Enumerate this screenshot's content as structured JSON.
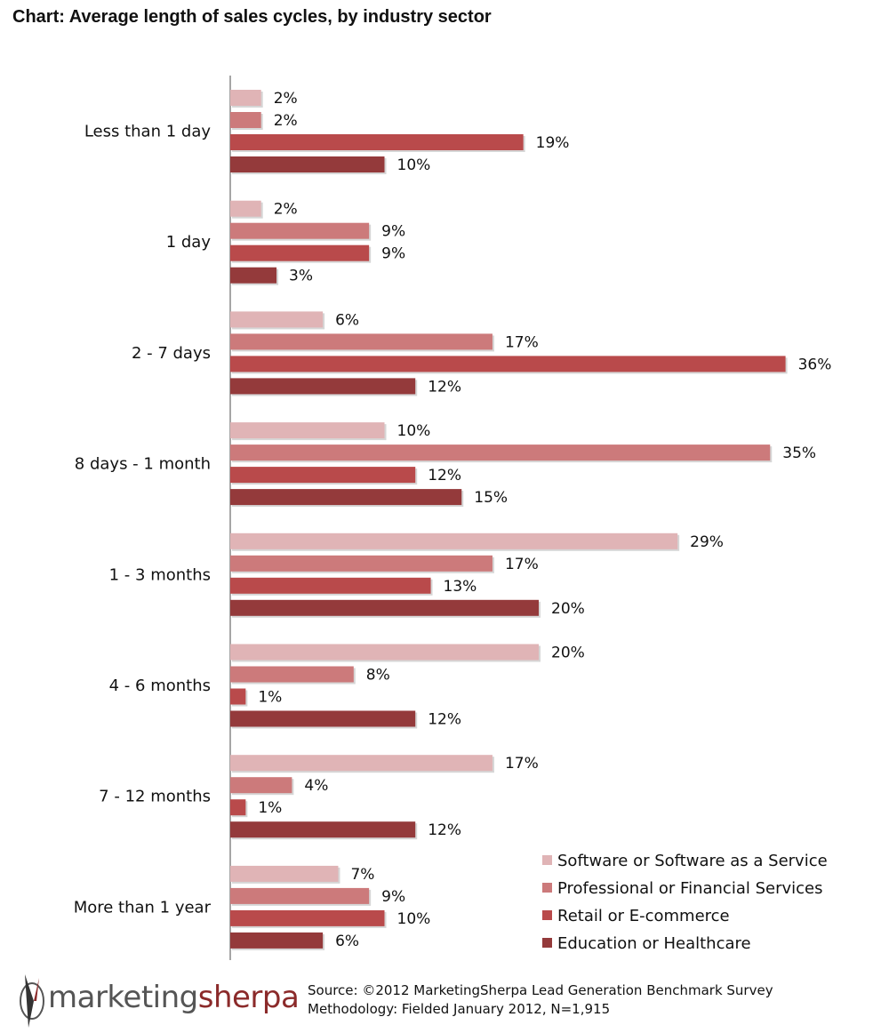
{
  "title": "Chart: Average length of sales cycles, by industry sector",
  "chart_data": {
    "type": "bar",
    "orientation": "horizontal",
    "title": "Chart: Average length of sales cycles, by industry sector",
    "categories": [
      "Less than 1 day",
      "1 day",
      "2 - 7 days",
      "8 days - 1 month",
      "1 - 3 months",
      "4 - 6 months",
      "7 - 12 months",
      "More than 1 year"
    ],
    "series": [
      {
        "name": "Software or Software as a Service",
        "color": "#e0b4b6",
        "values": [
          2,
          2,
          6,
          10,
          29,
          20,
          17,
          7
        ]
      },
      {
        "name": "Professional or Financial Services",
        "color": "#cc7a7b",
        "values": [
          2,
          9,
          17,
          35,
          17,
          8,
          4,
          9
        ]
      },
      {
        "name": "Retail or E-commerce",
        "color": "#b94a4b",
        "values": [
          19,
          9,
          36,
          12,
          13,
          1,
          1,
          10
        ]
      },
      {
        "name": "Education or Healthcare",
        "color": "#943a3b",
        "values": [
          10,
          3,
          12,
          15,
          20,
          12,
          12,
          6
        ]
      }
    ],
    "value_suffix": "%",
    "xlim": [
      0,
      36
    ],
    "grid": false,
    "legend_position": "bottom-right"
  },
  "logo": {
    "part1": "marketing",
    "part2": "sherpa"
  },
  "source": {
    "line1": "Source: ©2012 MarketingSherpa Lead Generation Benchmark Survey",
    "line2": "Methodology: Fielded January 2012, N=1,915"
  }
}
